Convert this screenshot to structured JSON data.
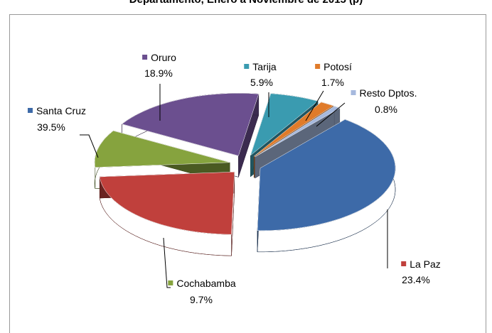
{
  "chart_data": {
    "type": "pie3d",
    "title": "Departamento, Enero a Noviembre de 2015 (p)",
    "categories": [
      "Tarija",
      "Potosí",
      "Resto Dptos.",
      "Santa Cruz",
      "La Paz",
      "Cochabamba",
      "Oruro"
    ],
    "values": [
      5.9,
      1.7,
      0.8,
      39.5,
      23.4,
      9.7,
      18.9
    ],
    "value_labels": [
      "5.9%",
      "1.7%",
      "0.8%",
      "39.5%",
      "23.4%",
      "9.7%",
      "18.9%"
    ],
    "colors": [
      "#3a9bb0",
      "#e07b2a",
      "#a6b9de",
      "#3d6aa8",
      "#c0403c",
      "#86a33e",
      "#6b4f8f"
    ]
  }
}
